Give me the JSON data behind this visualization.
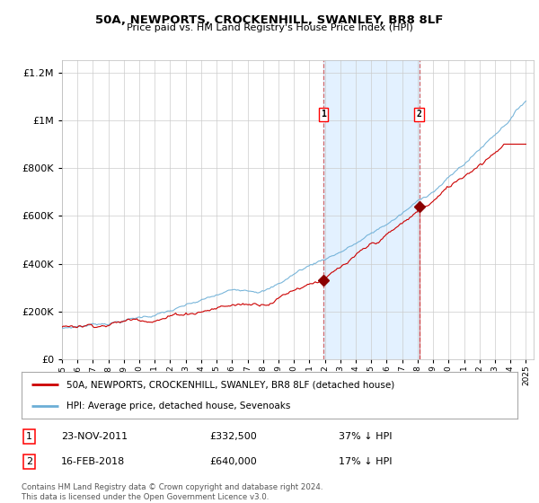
{
  "title": "50A, NEWPORTS, CROCKENHILL, SWANLEY, BR8 8LF",
  "subtitle": "Price paid vs. HM Land Registry's House Price Index (HPI)",
  "legend_line1": "50A, NEWPORTS, CROCKENHILL, SWANLEY, BR8 8LF (detached house)",
  "legend_line2": "HPI: Average price, detached house, Sevenoaks",
  "footnote": "Contains HM Land Registry data © Crown copyright and database right 2024.\nThis data is licensed under the Open Government Licence v3.0.",
  "transactions": [
    {
      "num": 1,
      "date": "23-NOV-2011",
      "price": 332500,
      "hpi_pct": "37% ↓ HPI",
      "year": 2011.9
    },
    {
      "num": 2,
      "date": "16-FEB-2018",
      "price": 640000,
      "hpi_pct": "17% ↓ HPI",
      "year": 2018.1
    }
  ],
  "hpi_color": "#6baed6",
  "price_color": "#cc0000",
  "marker_color": "#8b0000",
  "highlight_color": "#ddeeff",
  "background_color": "#ffffff",
  "grid_color": "#cccccc",
  "ylim": [
    0,
    1250000
  ],
  "xlim_start": 1995,
  "xlim_end": 2025.5,
  "yticks": [
    0,
    200000,
    400000,
    600000,
    800000,
    1000000,
    1200000
  ]
}
